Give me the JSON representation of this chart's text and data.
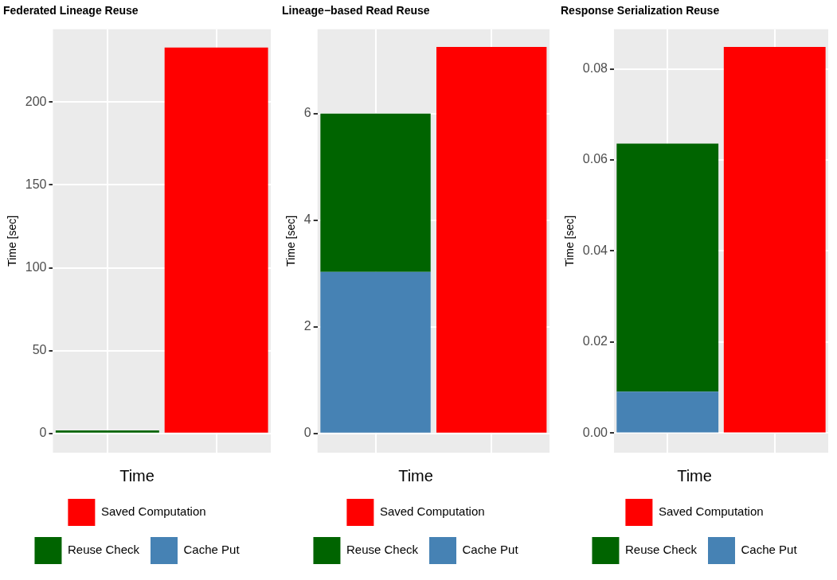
{
  "chart_data": [
    {
      "type": "bar",
      "title": "Federated Lineage Reuse",
      "ylabel": "Time [sec]",
      "legend_title": "Time",
      "categories": [
        null,
        null
      ],
      "stacked": true,
      "grid": true,
      "legend": "bottom",
      "tick_labels": "y",
      "ylim": [
        -11.7,
        244
      ],
      "yticks": [
        0,
        50,
        100,
        150,
        200
      ],
      "series": [
        {
          "name": "Cache Put",
          "color": "#4682b4",
          "values": [
            0,
            null
          ]
        },
        {
          "name": "Reuse Check",
          "color": "#006400",
          "values": [
            1.7,
            null
          ]
        },
        {
          "name": "Saved Computation",
          "color": "#ff0000",
          "values": [
            null,
            233
          ]
        }
      ]
    },
    {
      "type": "bar",
      "title": "Lineage−based Read Reuse",
      "ylabel": "Time [sec]",
      "legend_title": "Time",
      "categories": [
        null,
        null
      ],
      "stacked": true,
      "grid": true,
      "legend": "bottom",
      "tick_labels": "y",
      "ylim": [
        -0.36,
        7.58
      ],
      "yticks": [
        0,
        2,
        4,
        6
      ],
      "series": [
        {
          "name": "Cache Put",
          "color": "#4682b4",
          "values": [
            3.03,
            null
          ]
        },
        {
          "name": "Reuse Check",
          "color": "#006400",
          "values": [
            2.97,
            null
          ]
        },
        {
          "name": "Saved Computation",
          "color": "#ff0000",
          "values": [
            null,
            7.25
          ]
        }
      ]
    },
    {
      "type": "bar",
      "title": "Response Serialization Reuse",
      "ylabel": "Time [sec]",
      "legend_title": "Time",
      "categories": [
        null,
        null
      ],
      "stacked": true,
      "grid": true,
      "legend": "bottom",
      "tick_labels": "y",
      "ylim": [
        -0.0043,
        0.0887
      ],
      "yticks": [
        {
          "value": 0,
          "label": "0.00"
        },
        {
          "value": 0.02,
          "label": "0.02"
        },
        {
          "value": 0.04,
          "label": "0.04"
        },
        {
          "value": 0.06,
          "label": "0.06"
        },
        {
          "value": 0.08,
          "label": "0.08"
        }
      ],
      "series": [
        {
          "name": "Cache Put",
          "color": "#4682b4",
          "values": [
            0.0091,
            null
          ]
        },
        {
          "name": "Reuse Check",
          "color": "#006400",
          "values": [
            0.0545,
            null
          ]
        },
        {
          "name": "Saved Computation",
          "color": "#ff0000",
          "values": [
            null,
            0.0848
          ]
        }
      ]
    }
  ]
}
